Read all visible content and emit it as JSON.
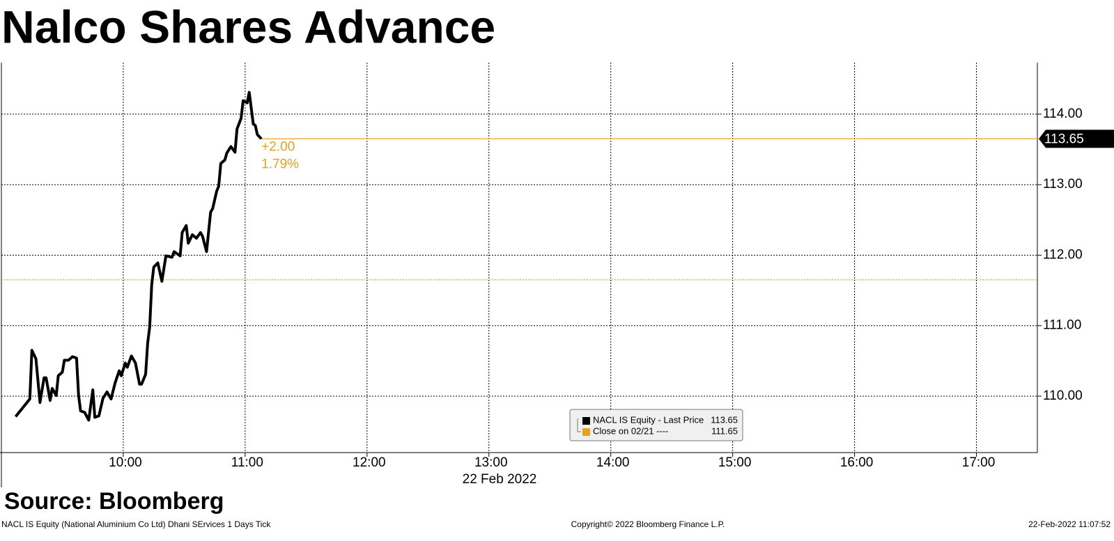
{
  "chart_data": {
    "type": "line",
    "title": "Nalco Shares Advance",
    "xlabel": "22 Feb 2022",
    "source": "Source: Bloomberg",
    "footer_left": "NACL IS Equity (National Aluminium Co Ltd) Dhani SErvices 1 Days  Tick",
    "footer_center": "Copyright© 2022 Bloomberg Finance L.P.",
    "footer_right": "22-Feb-2022 11:07:52",
    "annotations": [
      "+2.00",
      "1.79%"
    ],
    "grid": true,
    "xlim": [
      "09:00",
      "17:30"
    ],
    "xticks": [
      "10:00",
      "11:00",
      "12:00",
      "13:00",
      "14:00",
      "15:00",
      "16:00",
      "17:00"
    ],
    "ylim": [
      109.2,
      114.73
    ],
    "yticks": [
      {
        "value": 110,
        "label": "110.00"
      },
      {
        "value": 111,
        "label": "111.00"
      },
      {
        "value": 112,
        "label": "112.00"
      },
      {
        "value": 113,
        "label": "113.00"
      },
      {
        "value": 114,
        "label": "114.00"
      }
    ],
    "series": [
      {
        "name": "NACL IS Equity - Last Price",
        "color": "#000000",
        "x": [
          "09:07",
          "09:14",
          "09:15",
          "09:17",
          "09:19",
          "09:21",
          "09:22",
          "09:24",
          "09:25",
          "09:27",
          "09:28",
          "09:30",
          "09:31",
          "09:33",
          "09:35",
          "09:37",
          "09:38",
          "09:39",
          "09:41",
          "09:43",
          "09:45",
          "09:46",
          "09:48",
          "09:50",
          "09:52",
          "09:54",
          "09:56",
          "09:58",
          "09:59",
          "10:01",
          "10:02",
          "10:04",
          "10:06",
          "10:08",
          "10:09",
          "10:11",
          "10:12",
          "10:13",
          "10:14",
          "10:15",
          "10:17",
          "10:19",
          "10:21",
          "10:24",
          "10:25",
          "10:28",
          "10:29",
          "10:31",
          "10:32",
          "10:34",
          "10:36",
          "10:38",
          "10:39",
          "10:41",
          "10:43",
          "10:44",
          "10:46",
          "10:47",
          "10:48",
          "10:50",
          "10:51",
          "10:53",
          "10:55",
          "10:56",
          "10:58",
          "10:59",
          "11:01",
          "11:02",
          "11:04",
          "11:05",
          "11:06",
          "11:07",
          "11:08"
        ],
        "values": [
          109.71,
          109.96,
          110.65,
          110.53,
          109.91,
          110.26,
          110.26,
          109.94,
          110.11,
          110.01,
          110.29,
          110.34,
          110.51,
          110.51,
          110.56,
          110.54,
          110.01,
          109.79,
          109.77,
          109.66,
          110.09,
          109.7,
          109.72,
          109.97,
          110.06,
          109.96,
          110.19,
          110.36,
          110.29,
          110.47,
          110.41,
          110.57,
          110.47,
          110.17,
          110.17,
          110.31,
          110.75,
          110.98,
          111.58,
          111.83,
          111.89,
          111.63,
          111.99,
          111.97,
          112.05,
          111.99,
          112.32,
          112.42,
          112.17,
          112.29,
          112.24,
          112.32,
          112.27,
          112.05,
          112.61,
          112.66,
          112.91,
          112.98,
          113.3,
          113.35,
          113.45,
          113.54,
          113.46,
          113.79,
          113.94,
          114.19,
          114.16,
          114.31,
          113.86,
          113.84,
          113.71,
          113.68,
          113.65
        ]
      }
    ],
    "reference": {
      "name": "Close on 02/21 ----",
      "value": 111.65,
      "color": "#e8a020"
    }
  }
}
